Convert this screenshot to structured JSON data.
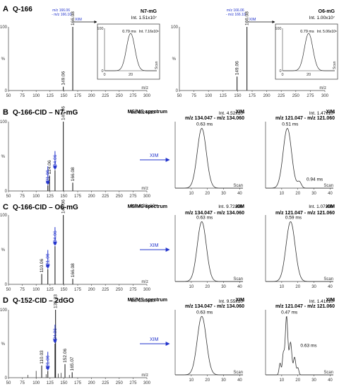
{
  "figure": {
    "panels": [
      {
        "letter": "A",
        "title": "Q-166"
      },
      {
        "letter": "B",
        "title": "Q-166-CID – N7-mG"
      },
      {
        "letter": "C",
        "title": "Q-166-CID – O6-mG"
      },
      {
        "letter": "D",
        "title": "Q-152-CID – 2dGO"
      }
    ],
    "common": {
      "mz_label": "m/z",
      "scan_label": "Scan",
      "pct_label": "%",
      "ms2_header": "MS/MS spectrum",
      "xim_header": "XIM",
      "xim_arrow_label": "XIM",
      "xim_ranges": [
        "m/z 134.047 - m/z 134.060",
        "m/z 121.047 - m/z 121.060"
      ]
    },
    "colors": {
      "blue": "#2233cc",
      "black": "#111111",
      "grey": "#555555"
    }
  },
  "chart_data": [
    {
      "id": "A_left",
      "type": "bar",
      "kind": "ms1",
      "title": "N7-mG",
      "intensity": "Int. 1.51x10⁷",
      "xlim": [
        50,
        300
      ],
      "ylim": [
        0,
        100
      ],
      "xticks": [
        50,
        75,
        100,
        125,
        150,
        175,
        200,
        225,
        250,
        275,
        300
      ],
      "yticks": [
        0,
        100
      ],
      "peaks": [
        {
          "mz": 149.06,
          "value": 6,
          "label": "149.06",
          "color": "black"
        },
        {
          "mz": 166.08,
          "value": 100,
          "label": "166.08",
          "color": "black"
        }
      ],
      "inset": {
        "range_label": [
          "m/z 166.06",
          "- m/z 166.10"
        ],
        "xim_label": "XIM",
        "peak_label": "0.79 ms",
        "intensity": "Int. 7.16x10⁶",
        "xlim": [
          0,
          40
        ],
        "xticks": [
          0,
          20
        ],
        "ylim": [
          0,
          100
        ],
        "yticks": [
          0,
          100
        ],
        "center": 20,
        "width": 3.2
      }
    },
    {
      "id": "A_right",
      "type": "bar",
      "kind": "ms1",
      "title": "O6-mG",
      "intensity": "Int. 1.00x10⁷",
      "xlim": [
        50,
        300
      ],
      "ylim": [
        0,
        100
      ],
      "xticks": [
        50,
        75,
        100,
        125,
        150,
        175,
        200,
        225,
        250,
        275,
        300
      ],
      "yticks": [
        0,
        100
      ],
      "peaks": [
        {
          "mz": 149.06,
          "value": 22,
          "label": "149.06",
          "color": "black"
        },
        {
          "mz": 166.08,
          "value": 100,
          "label": "166.08",
          "color": "black"
        }
      ],
      "inset": {
        "range_label": [
          "m/z 166.06",
          "- m/z 166.10"
        ],
        "xim_label": "XIM",
        "peak_label": "0.79 ms",
        "intensity": "Int. 5.06x10⁶",
        "xlim": [
          0,
          40
        ],
        "xticks": [
          0,
          20
        ],
        "ylim": [
          0,
          100
        ],
        "yticks": [
          0,
          100
        ],
        "center": 20,
        "width": 3.2
      }
    },
    {
      "id": "B_ms2",
      "type": "bar",
      "kind": "ms2",
      "intensity": "Int. 8.24x10⁵",
      "xlim": [
        50,
        300
      ],
      "ylim": [
        0,
        100
      ],
      "xticks": [
        50,
        75,
        100,
        125,
        150,
        175,
        200,
        225,
        250,
        275,
        300
      ],
      "yticks": [
        0,
        100
      ],
      "peaks": [
        {
          "mz": 121.06,
          "value": 8,
          "label": "121.06",
          "color": "blue"
        },
        {
          "mz": 124.06,
          "value": 22,
          "label": "124.06",
          "color": "black"
        },
        {
          "mz": 134.06,
          "value": 30,
          "label": "134.06",
          "color": "blue"
        },
        {
          "mz": 149.06,
          "value": 100,
          "label": "149.06",
          "color": "black"
        },
        {
          "mz": 166.08,
          "value": 12,
          "label": "166.08",
          "color": "black"
        }
      ],
      "arrows": [
        121.06,
        134.06
      ]
    },
    {
      "id": "B_xim1",
      "type": "line",
      "kind": "xim",
      "intensity": "Int. 4.52x10³",
      "xlim": [
        0,
        42
      ],
      "xticks": [
        10,
        20,
        30,
        40
      ],
      "ylim": [
        0,
        100
      ],
      "peak_label": "0.63 ms",
      "peaks": [
        {
          "center": 16.5,
          "width": 2.8,
          "height": 100
        }
      ]
    },
    {
      "id": "B_xim2",
      "type": "line",
      "kind": "xim",
      "intensity": "Int. 1.47x10³",
      "xlim": [
        0,
        42
      ],
      "xticks": [
        10,
        20,
        30,
        40
      ],
      "ylim": [
        0,
        100
      ],
      "peak_label": "0.51 ms",
      "peaks": [
        {
          "center": 13.5,
          "width": 2.6,
          "height": 100
        },
        {
          "center": 21,
          "width": 1.2,
          "height": 10
        }
      ],
      "extra_label": "0.94 ms"
    },
    {
      "id": "C_ms2",
      "type": "bar",
      "kind": "ms2",
      "intensity": "Int. 4.38x10⁵",
      "xlim": [
        50,
        300
      ],
      "ylim": [
        0,
        100
      ],
      "xticks": [
        50,
        75,
        100,
        125,
        150,
        175,
        200,
        225,
        250,
        275,
        300
      ],
      "yticks": [
        0,
        100
      ],
      "peaks": [
        {
          "mz": 110.06,
          "value": 15,
          "label": "110.06",
          "color": "black"
        },
        {
          "mz": 121.06,
          "value": 22,
          "label": "121.06",
          "color": "blue"
        },
        {
          "mz": 134.06,
          "value": 55,
          "label": "134.06",
          "color": "blue"
        },
        {
          "mz": 149.06,
          "value": 100,
          "label": "149.06",
          "color": "black"
        },
        {
          "mz": 166.08,
          "value": 8,
          "label": "166.08",
          "color": "black"
        }
      ],
      "arrows": [
        121.06,
        134.06
      ]
    },
    {
      "id": "C_xim1",
      "type": "line",
      "kind": "xim",
      "intensity": "Int. 9.72x10⁴",
      "xlim": [
        0,
        42
      ],
      "xticks": [
        10,
        20,
        30,
        40
      ],
      "ylim": [
        0,
        100
      ],
      "peak_label": "0.63 ms",
      "peaks": [
        {
          "center": 16.5,
          "width": 2.8,
          "height": 100
        }
      ]
    },
    {
      "id": "C_xim2",
      "type": "line",
      "kind": "xim",
      "intensity": "Int. 1.07x10⁴",
      "xlim": [
        0,
        42
      ],
      "xticks": [
        10,
        20,
        30,
        40
      ],
      "ylim": [
        0,
        100
      ],
      "peak_label": "0.59 ms",
      "peaks": [
        {
          "center": 15.5,
          "width": 2.8,
          "height": 100
        }
      ]
    },
    {
      "id": "D_ms2",
      "type": "bar",
      "kind": "ms2",
      "intensity": "Int. 1.80x10⁵",
      "xlim": [
        50,
        300
      ],
      "ylim": [
        0,
        100
      ],
      "xticks": [
        50,
        75,
        100,
        125,
        150,
        175,
        200,
        225,
        250,
        275,
        300
      ],
      "yticks": [
        0,
        100
      ],
      "peaks": [
        {
          "mz": 110.03,
          "value": 18,
          "label": "110.03",
          "color": "black"
        },
        {
          "mz": 121.06,
          "value": 10,
          "label": "121.06",
          "color": "blue"
        },
        {
          "mz": 134.06,
          "value": 50,
          "label": "134.06",
          "color": "blue"
        },
        {
          "mz": 135.03,
          "value": 100,
          "label": "135.03",
          "color": "black"
        },
        {
          "mz": 152.06,
          "value": 20,
          "label": "152.06",
          "color": "black"
        },
        {
          "mz": 165.07,
          "value": 8,
          "label": "165.07",
          "color": "black"
        }
      ],
      "minor": [
        [
          85,
          4
        ],
        [
          100,
          10
        ],
        [
          118,
          5
        ],
        [
          140,
          6
        ],
        [
          145,
          7
        ],
        [
          160,
          4
        ]
      ],
      "arrows": [
        121.06,
        134.06
      ]
    },
    {
      "id": "D_xim1",
      "type": "line",
      "kind": "xim",
      "intensity": "Int. 9.55x10²",
      "xlim": [
        0,
        42
      ],
      "xticks": [
        10,
        20,
        30,
        40
      ],
      "ylim": [
        0,
        100
      ],
      "peak_label": "0.63 ms",
      "peaks": [
        {
          "center": 16.5,
          "width": 2.8,
          "height": 100
        }
      ]
    },
    {
      "id": "D_xim2",
      "type": "line",
      "kind": "xim",
      "intensity": "Int. 1.41x10²",
      "xlim": [
        0,
        42
      ],
      "xticks": [
        10,
        20,
        30,
        40
      ],
      "ylim": [
        0,
        100
      ],
      "peak_label": "0.47 ms",
      "peaks": [
        {
          "center": 13,
          "width": 0.8,
          "height": 100
        },
        {
          "center": 15.5,
          "width": 0.8,
          "height": 55
        },
        {
          "center": 11,
          "width": 0.6,
          "height": 35
        },
        {
          "center": 9,
          "width": 0.6,
          "height": 20
        },
        {
          "center": 18,
          "width": 0.7,
          "height": 30
        },
        {
          "center": 20,
          "width": 0.6,
          "height": 12
        }
      ],
      "extra_label": "0.63 ms"
    }
  ]
}
